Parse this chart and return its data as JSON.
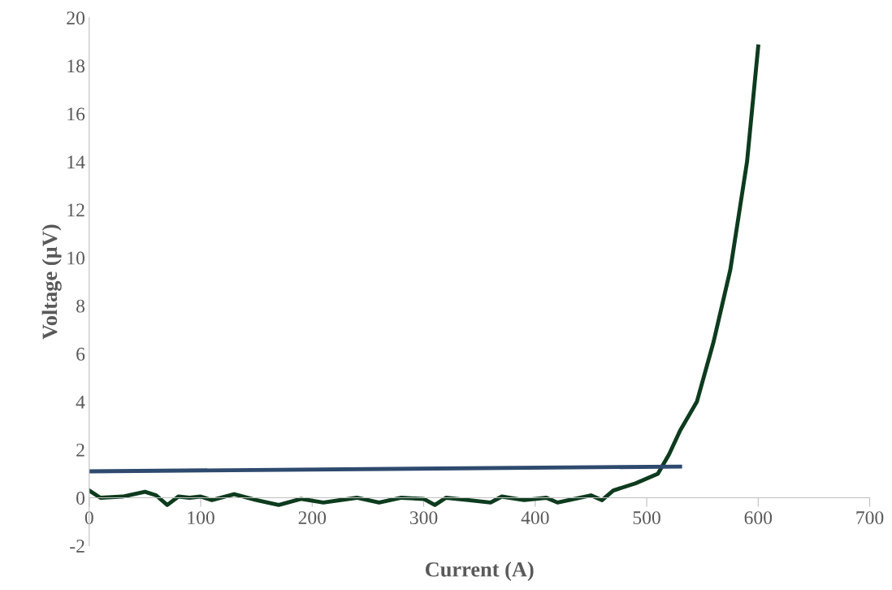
{
  "chart_data": {
    "type": "line",
    "xlabel": "Current (A)",
    "ylabel": "Voltage (µV)",
    "xlim": [
      0,
      700
    ],
    "xticks": [
      0,
      100,
      200,
      300,
      400,
      500,
      600,
      700
    ],
    "ylim": [
      -2,
      20
    ],
    "yticks": [
      -2,
      0,
      2,
      4,
      6,
      8,
      10,
      12,
      14,
      16,
      18,
      20
    ],
    "grid": false,
    "legend": false,
    "marker": "none",
    "line_style": "solid",
    "series": [
      {
        "color": "#0d3b1e",
        "x": [
          0,
          10,
          30,
          50,
          60,
          70,
          80,
          90,
          100,
          110,
          130,
          150,
          170,
          190,
          210,
          240,
          260,
          280,
          300,
          310,
          320,
          340,
          360,
          370,
          390,
          410,
          420,
          450,
          460,
          470,
          490,
          510,
          520,
          530,
          545,
          560,
          575,
          590,
          600
        ],
        "values": [
          0.3,
          0,
          0.05,
          0.25,
          0.1,
          -0.3,
          0.05,
          0,
          0.05,
          -0.1,
          0.15,
          -0.1,
          -0.3,
          -0.05,
          -0.2,
          0,
          -0.2,
          0,
          -0.05,
          -0.3,
          0,
          -0.1,
          -0.2,
          0.05,
          -0.1,
          0,
          -0.2,
          0.1,
          -0.1,
          0.3,
          0.6,
          1.0,
          1.8,
          2.8,
          4,
          6.5,
          9.5,
          14,
          18.8
        ]
      },
      {
        "color": "#2e4a6e",
        "x": [
          0,
          530
        ],
        "values": [
          1.1,
          1.3
        ]
      }
    ]
  }
}
